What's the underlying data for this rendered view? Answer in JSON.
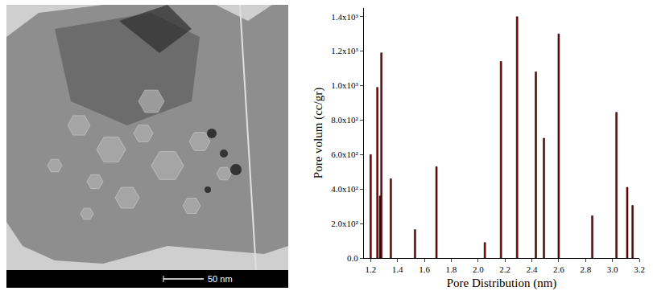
{
  "image": {
    "scale_bar": "50 nm"
  },
  "chart_data": {
    "type": "bar",
    "xlabel": "Pore Distribution (nm)",
    "ylabel": "Pore volum (cc/gr)",
    "x": [
      1.2,
      1.25,
      1.27,
      1.28,
      1.35,
      1.53,
      1.69,
      2.05,
      2.17,
      2.29,
      2.43,
      2.49,
      2.6,
      2.85,
      3.03,
      3.11,
      3.15
    ],
    "values": [
      600,
      990,
      360,
      1190,
      460,
      165,
      530,
      90,
      1140,
      1400,
      1080,
      695,
      1300,
      245,
      845,
      410,
      305
    ],
    "color": "#8b0000",
    "xlim": [
      1.15,
      3.2
    ],
    "xticks": [
      1.2,
      1.4,
      1.6,
      1.8,
      {
        "value": 2.0,
        "label": "2.0"
      },
      2.2,
      2.4,
      2.6,
      2.8,
      {
        "value": 3.0,
        "label": "3.0"
      },
      3.2
    ],
    "ylim": [
      0,
      1450
    ],
    "yticks": [
      {
        "value": 0,
        "label": "0.0"
      },
      {
        "value": 200,
        "label": "2.0x10²"
      },
      {
        "value": 400,
        "label": "4.0x10²"
      },
      {
        "value": 600,
        "label": "6.0x10²"
      },
      {
        "value": 800,
        "label": "8.0x10²"
      },
      {
        "value": 1000,
        "label": "1.0x10³"
      },
      {
        "value": 1200,
        "label": "1.2x10³"
      },
      {
        "value": 1400,
        "label": "1.4x10³"
      }
    ],
    "grid": false
  }
}
